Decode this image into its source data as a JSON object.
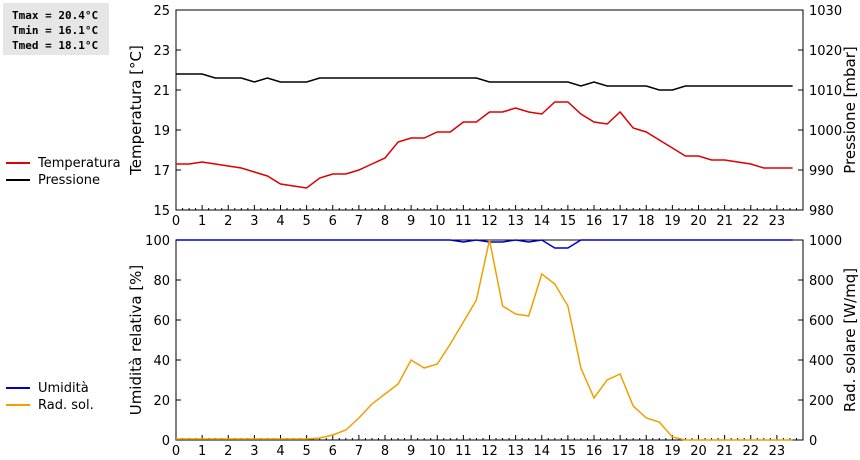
{
  "stats": {
    "tmax": "Tmax = 20.4°C",
    "tmin": "Tmin = 16.1°C",
    "tmed": "Tmed = 18.1°C"
  },
  "chart_data": [
    {
      "type": "line",
      "xlabel": "",
      "ylabel": "Temperatura [°C]",
      "y2label": "Pressione [mbar]",
      "xlim": [
        0,
        24
      ],
      "xticks": [
        "0",
        "1",
        "2",
        "3",
        "4",
        "5",
        "6",
        "7",
        "8",
        "9",
        "10",
        "11",
        "12",
        "13",
        "14",
        "15",
        "16",
        "17",
        "18",
        "19",
        "20",
        "21",
        "22",
        "23"
      ],
      "ylim": [
        15,
        25
      ],
      "yticks": [
        "15",
        "17",
        "19",
        "21",
        "23",
        "25"
      ],
      "y2lim": [
        980,
        1030
      ],
      "y2ticks": [
        "980",
        "990",
        "1000",
        "1010",
        "1020",
        "1030"
      ],
      "grid": false,
      "legend": "left",
      "series": [
        {
          "name": "Temperatura",
          "color": "#dd0000",
          "axis": "left",
          "x": [
            0,
            0.5,
            1,
            1.5,
            2,
            2.5,
            3,
            3.5,
            4,
            4.5,
            5,
            5.5,
            6,
            6.5,
            7,
            7.5,
            8,
            8.5,
            9,
            9.5,
            10,
            10.5,
            11,
            11.5,
            12,
            12.5,
            13,
            13.5,
            14,
            14.5,
            15,
            15.5,
            16,
            16.5,
            17,
            17.5,
            18,
            18.5,
            19,
            19.5,
            20,
            20.5,
            21,
            21.5,
            22,
            22.5,
            23,
            23.6
          ],
          "y": [
            17.3,
            17.3,
            17.4,
            17.3,
            17.2,
            17.1,
            16.9,
            16.7,
            16.3,
            16.2,
            16.1,
            16.6,
            16.8,
            16.8,
            17.0,
            17.3,
            17.6,
            18.4,
            18.6,
            18.6,
            18.9,
            18.9,
            19.4,
            19.4,
            19.9,
            19.9,
            20.1,
            19.9,
            19.8,
            20.4,
            20.4,
            19.8,
            19.4,
            19.3,
            19.9,
            19.1,
            18.9,
            18.5,
            18.1,
            17.7,
            17.7,
            17.5,
            17.5,
            17.4,
            17.3,
            17.1,
            17.1,
            17.1
          ]
        },
        {
          "name": "Pressione",
          "color": "#000000",
          "axis": "right",
          "x": [
            0,
            1,
            1.5,
            2,
            2.5,
            3,
            3.5,
            4,
            4.5,
            5,
            5.5,
            6,
            6.5,
            7,
            7.5,
            8,
            8.5,
            9,
            9.5,
            10,
            10.5,
            11,
            11.5,
            12,
            12.5,
            13,
            13.5,
            14,
            14.5,
            15,
            15.5,
            16,
            16.5,
            17,
            17.5,
            18,
            18.5,
            19,
            19.5,
            20,
            21,
            22,
            23,
            23.6
          ],
          "y": [
            1014,
            1014,
            1013,
            1013,
            1013,
            1012,
            1013,
            1012,
            1012,
            1012,
            1013,
            1013,
            1013,
            1013,
            1013,
            1013,
            1013,
            1013,
            1013,
            1013,
            1013,
            1013,
            1013,
            1012,
            1012,
            1012,
            1012,
            1012,
            1012,
            1012,
            1011,
            1012,
            1011,
            1011,
            1011,
            1011,
            1010,
            1010,
            1011,
            1011,
            1011,
            1011,
            1011,
            1011
          ]
        }
      ]
    },
    {
      "type": "line",
      "xlabel": "",
      "ylabel": "Umidità relativa [%]",
      "y2label": "Rad. solare [W/mq]",
      "xlim": [
        0,
        24
      ],
      "xticks": [
        "0",
        "1",
        "2",
        "3",
        "4",
        "5",
        "6",
        "7",
        "8",
        "9",
        "10",
        "11",
        "12",
        "13",
        "14",
        "15",
        "16",
        "17",
        "18",
        "19",
        "20",
        "21",
        "22",
        "23"
      ],
      "ylim": [
        0,
        100
      ],
      "yticks": [
        "0",
        "20",
        "40",
        "60",
        "80",
        "100"
      ],
      "y2lim": [
        0,
        1000
      ],
      "y2ticks": [
        "0",
        "200",
        "400",
        "600",
        "800",
        "1000"
      ],
      "grid": false,
      "legend": "left",
      "series": [
        {
          "name": "Umidità",
          "color": "#0000cc",
          "axis": "left",
          "x": [
            0,
            10.5,
            11,
            11.5,
            12,
            12.5,
            13,
            13.5,
            14,
            14.5,
            15,
            15.5,
            23.6
          ],
          "y": [
            100,
            100,
            99,
            100,
            99,
            99,
            100,
            99,
            100,
            96,
            96,
            100,
            100
          ]
        },
        {
          "name": "Rad. sol.",
          "color": "#f0a000",
          "axis": "right",
          "x": [
            0,
            5,
            5.5,
            6,
            6.5,
            7,
            7.5,
            8,
            8.5,
            9,
            9.5,
            10,
            10.5,
            11,
            11.5,
            12,
            12.5,
            13,
            13.5,
            14,
            14.5,
            15,
            15.5,
            16,
            16.5,
            17,
            17.5,
            18,
            18.5,
            19,
            19.5,
            20,
            23.6
          ],
          "y": [
            5,
            5,
            10,
            25,
            50,
            110,
            180,
            230,
            280,
            400,
            360,
            380,
            480,
            590,
            700,
            1000,
            670,
            630,
            620,
            830,
            780,
            670,
            360,
            210,
            300,
            330,
            170,
            110,
            90,
            15,
            0,
            0,
            0
          ]
        }
      ]
    }
  ]
}
